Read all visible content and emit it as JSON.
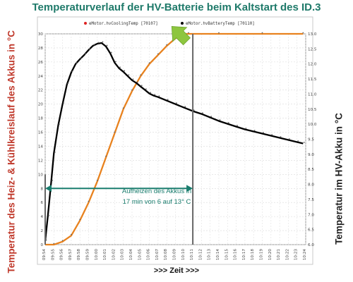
{
  "chart_data": {
    "type": "line",
    "title": "Temperaturverlauf der HV-Batterie beim Kaltstart des ID.3",
    "xlabel": ">>> Zeit >>>",
    "ylabel_left": "Temperatur des Heiz- & Kühlkreislauf des Akkus in °C",
    "ylabel_right": "Temperatur im HV-Akku in °C",
    "x_tick_labels": [
      "09:54",
      "09:55",
      "09:56",
      "09:57",
      "09:58",
      "09:59",
      "10:00",
      "10:01",
      "10:02",
      "10:03",
      "10:04",
      "10:05",
      "10:06",
      "10:07",
      "10:08",
      "10:09",
      "10:10",
      "10:11",
      "10:12",
      "10:13",
      "10:14",
      "10:15",
      "10:16",
      "10:17",
      "10:18",
      "10:19",
      "10:20",
      "10:21",
      "10:22",
      "10:23",
      "10:24"
    ],
    "xlim": [
      0,
      30
    ],
    "ylim_left": [
      0,
      30
    ],
    "ylim_right": [
      6.0,
      13.0
    ],
    "y_ticks_left": [
      0,
      2,
      4,
      6,
      8,
      10,
      12,
      14,
      16,
      18,
      20,
      22,
      24,
      26,
      28,
      30
    ],
    "y_ticks_right": [
      "6.0",
      "6.5",
      "7.0",
      "7.5",
      "8.0",
      "8.5",
      "9.0",
      "9.5",
      "10.0",
      "10.5",
      "11.0",
      "11.5",
      "12.0",
      "12.5",
      "13.0"
    ],
    "grid": true,
    "legend_position": "top",
    "colors": {
      "cooling": "#000000",
      "battery": "#e8821e",
      "annotation": "#1a7d6e",
      "highlight_arrow": "#8dc63f",
      "marker_line": "#666666"
    },
    "series": [
      {
        "name": "eMotor.hvCoolingTemp [70107]",
        "axis": "left",
        "marker_color": "#dd2222",
        "points": [
          [
            0.0,
            0.5
          ],
          [
            0.3,
            4
          ],
          [
            0.7,
            9
          ],
          [
            1.0,
            13
          ],
          [
            1.5,
            17
          ],
          [
            2.0,
            20
          ],
          [
            2.5,
            22.8
          ],
          [
            3.0,
            24.5
          ],
          [
            3.5,
            25.7
          ],
          [
            4.0,
            26.4
          ],
          [
            4.5,
            27.0
          ],
          [
            5.0,
            27.7
          ],
          [
            5.5,
            28.3
          ],
          [
            6.0,
            28.6
          ],
          [
            6.5,
            28.7
          ],
          [
            7.0,
            28.2
          ],
          [
            7.5,
            27.2
          ],
          [
            8.0,
            25.9
          ],
          [
            8.5,
            25.1
          ],
          [
            9.0,
            24.6
          ],
          [
            9.5,
            24.0
          ],
          [
            10.0,
            23.4
          ],
          [
            10.5,
            23.0
          ],
          [
            11.0,
            22.5
          ],
          [
            11.5,
            22.0
          ],
          [
            12.0,
            21.5
          ],
          [
            12.5,
            21.2
          ],
          [
            13.0,
            21.0
          ],
          [
            14.0,
            20.5
          ],
          [
            15.0,
            20.0
          ],
          [
            16.0,
            19.5
          ],
          [
            17.0,
            19.0
          ],
          [
            18.0,
            18.6
          ],
          [
            19.0,
            18.1
          ],
          [
            20.0,
            17.6
          ],
          [
            21.0,
            17.2
          ],
          [
            22.0,
            16.8
          ],
          [
            23.0,
            16.4
          ],
          [
            24.0,
            16.1
          ],
          [
            25.0,
            15.8
          ],
          [
            26.0,
            15.5
          ],
          [
            27.0,
            15.2
          ],
          [
            28.0,
            14.9
          ],
          [
            29.0,
            14.6
          ],
          [
            29.7,
            14.4
          ]
        ]
      },
      {
        "name": "eMotor.hvBatteryTemp [70110]",
        "axis": "right",
        "marker_color": "#000000",
        "points": [
          [
            0.0,
            6.0
          ],
          [
            1.0,
            6.0
          ],
          [
            2.0,
            6.1
          ],
          [
            3.0,
            6.3
          ],
          [
            4.0,
            6.8
          ],
          [
            5.0,
            7.4
          ],
          [
            6.0,
            8.1
          ],
          [
            7.0,
            8.9
          ],
          [
            8.0,
            9.7
          ],
          [
            9.0,
            10.5
          ],
          [
            10.0,
            11.1
          ],
          [
            11.0,
            11.6
          ],
          [
            12.0,
            12.0
          ],
          [
            13.0,
            12.3
          ],
          [
            14.0,
            12.6
          ],
          [
            15.0,
            12.85
          ],
          [
            16.0,
            13.0
          ],
          [
            16.5,
            13.0
          ],
          [
            20.0,
            13.0
          ],
          [
            25.0,
            13.0
          ],
          [
            29.7,
            13.0
          ]
        ]
      }
    ],
    "annotation": {
      "line1": "Aufheizen des Akkus in",
      "line2": "17 min von 6 auf 13° C",
      "arrow_start_x": 0,
      "arrow_end_x": 17
    }
  }
}
